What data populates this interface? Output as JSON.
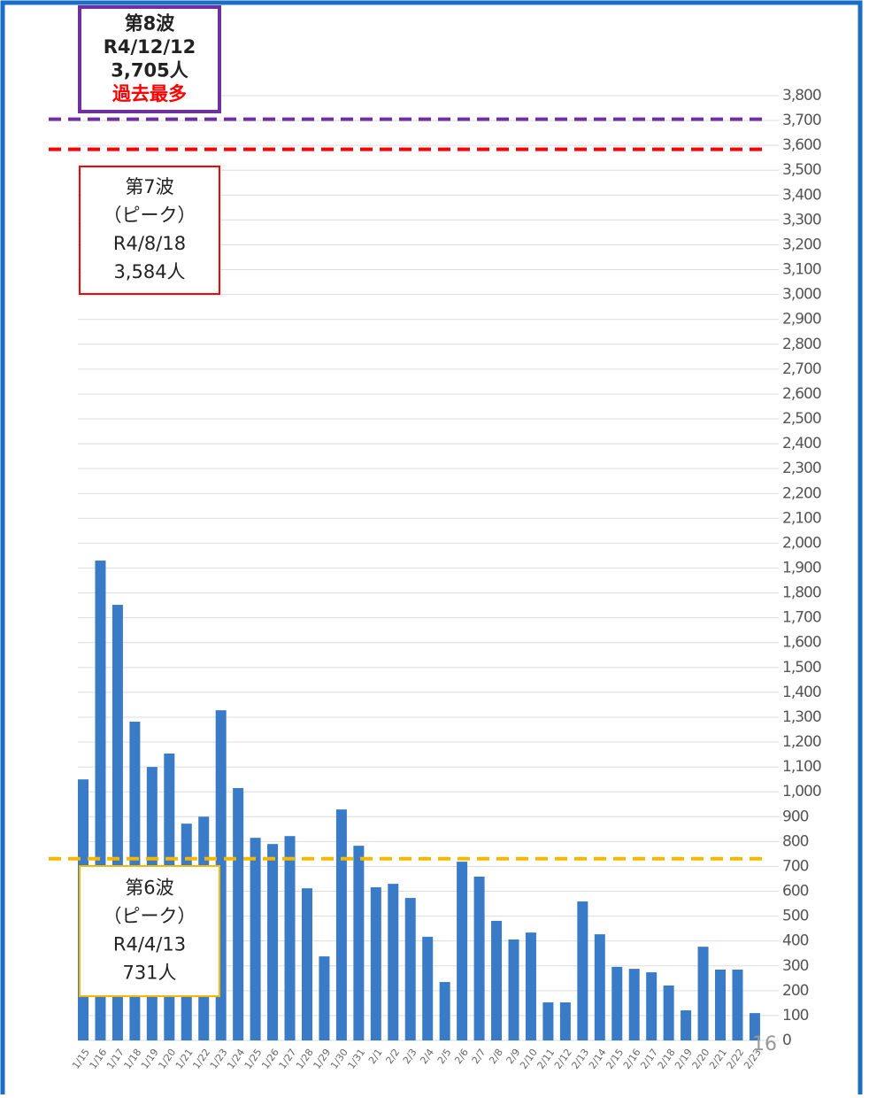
{
  "chart_data": {
    "type": "bar",
    "color": "#3a7bc8",
    "categories": [
      "1/15",
      "1/16",
      "1/17",
      "1/18",
      "1/19",
      "1/20",
      "1/21",
      "1/22",
      "1/23",
      "1/24",
      "1/25",
      "1/26",
      "1/27",
      "1/28",
      "1/29",
      "1/30",
      "1/31",
      "2/1",
      "2/2",
      "2/3",
      "2/4",
      "2/5",
      "2/6",
      "2/7",
      "2/8",
      "2/9",
      "2/10",
      "2/11",
      "2/12",
      "2/13",
      "2/14",
      "2/15",
      "2/16",
      "2/17",
      "2/18",
      "2/19",
      "2/20",
      "2/21",
      "2/22",
      "2/23"
    ],
    "values": [
      1050,
      1930,
      1752,
      1282,
      1100,
      1154,
      872,
      900,
      1328,
      1015,
      815,
      790,
      822,
      612,
      338,
      929,
      783,
      616,
      630,
      573,
      417,
      235,
      719,
      659,
      481,
      406,
      434,
      153,
      153,
      559,
      427,
      296,
      288,
      274,
      221,
      121,
      377,
      285,
      285,
      110
    ],
    "ylim": [
      0,
      3800
    ],
    "yticks": [
      0,
      100,
      200,
      300,
      400,
      500,
      600,
      700,
      800,
      900,
      {
        "value": 1000,
        "label": "1,000"
      },
      {
        "value": 1100,
        "label": "1,100"
      },
      {
        "value": 1200,
        "label": "1,200"
      },
      {
        "value": 1300,
        "label": "1,300"
      },
      {
        "value": 1400,
        "label": "1,400"
      },
      {
        "value": 1500,
        "label": "1,500"
      },
      {
        "value": 1600,
        "label": "1,600"
      },
      {
        "value": 1700,
        "label": "1,700"
      },
      {
        "value": 1800,
        "label": "1,800"
      },
      {
        "value": 1900,
        "label": "1,900"
      },
      {
        "value": 2000,
        "label": "2,000"
      },
      {
        "value": 2100,
        "label": "2,100"
      },
      {
        "value": 2200,
        "label": "2,200"
      },
      {
        "value": 2300,
        "label": "2,300"
      },
      {
        "value": 2400,
        "label": "2,400"
      },
      {
        "value": 2500,
        "label": "2,500"
      },
      {
        "value": 2600,
        "label": "2,600"
      },
      {
        "value": 2700,
        "label": "2,700"
      },
      {
        "value": 2800,
        "label": "2,800"
      },
      {
        "value": 2900,
        "label": "2,900"
      },
      {
        "value": 3000,
        "label": "3,000"
      },
      {
        "value": 3100,
        "label": "3,100"
      },
      {
        "value": 3200,
        "label": "3,200"
      },
      {
        "value": 3300,
        "label": "3,300"
      },
      {
        "value": 3400,
        "label": "3,400"
      },
      {
        "value": 3500,
        "label": "3,500"
      },
      {
        "value": 3600,
        "label": "3,600"
      },
      {
        "value": 3700,
        "label": "3,700"
      },
      {
        "value": 3800,
        "label": "3,800"
      }
    ],
    "grid": true,
    "reference_lines": [
      {
        "value": 3705,
        "color": "#7030a0",
        "lines": [
          "第8波",
          "R4/12/12",
          "3,705人"
        ],
        "note": "過去最多",
        "note_color": "#ff0000"
      },
      {
        "value": 3584,
        "color": "#ff0000",
        "lines": [
          "第7波",
          "（ピーク）",
          "R4/8/18",
          "3,584人"
        ]
      },
      {
        "value": 731,
        "color": "#f5b800",
        "lines": [
          "第6波",
          "（ピーク）",
          "R4/4/13",
          "731人"
        ]
      }
    ],
    "page_number": "16"
  }
}
